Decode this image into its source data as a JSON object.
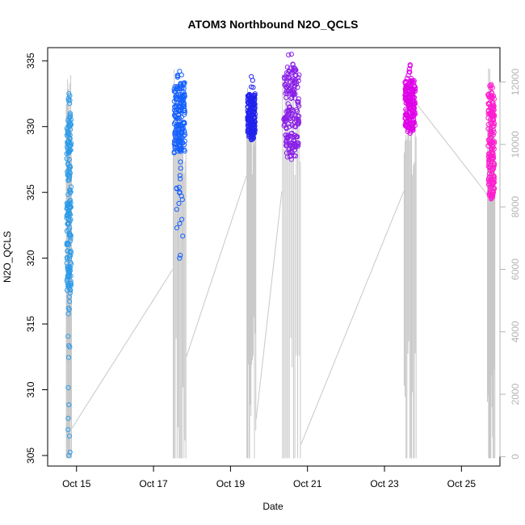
{
  "chart_data": {
    "type": "scatter",
    "title": "ATOM3 Northbound N2O_QCLS",
    "xlabel": "Date",
    "ylabel": "N2O_QCLS",
    "x_axis": {
      "scale": "date",
      "range": [
        "2017-10-14T06:00",
        "2017-10-26T00:00"
      ],
      "ticks": [
        "2017-10-15",
        "2017-10-17",
        "2017-10-19",
        "2017-10-21",
        "2017-10-23",
        "2017-10-25"
      ],
      "tick_labels": [
        "Oct 15",
        "Oct 17",
        "Oct 19",
        "Oct 21",
        "Oct 23",
        "Oct 25"
      ]
    },
    "y_axis": {
      "range": [
        304.2,
        336.0
      ],
      "ticks": [
        305,
        310,
        315,
        320,
        325,
        330,
        335
      ],
      "tick_labels": [
        "305",
        "310",
        "315",
        "320",
        "325",
        "330",
        "335"
      ]
    },
    "y_axis_right": {
      "description": "altitude trace (gray line)",
      "range": [
        -300,
        13100
      ],
      "ticks": [
        0,
        2000,
        4000,
        6000,
        8000,
        10000,
        12000
      ],
      "tick_labels": [
        "0",
        "2000",
        "4000",
        "6000",
        "8000",
        "10000",
        "12000"
      ],
      "color": "#b4b4b4"
    },
    "grid": false,
    "legend": "none",
    "series": [
      {
        "marker": "open-circle",
        "color_gradient": [
          "#1e90ff",
          "#1a1aff",
          "#8a2be2",
          "#ff00ff"
        ],
        "flights": [
          {
            "date": "2017-10-14T19:00",
            "x_start": "2017-10-14T17:30",
            "x_end": "2017-10-14T21:00",
            "y_min": 305.0,
            "y_max": 332.5,
            "y_core": [
              317.5,
              331.0
            ],
            "color": "#2b9bea"
          },
          {
            "date": "2017-10-17T17:00",
            "x_start": "2017-10-17T12:00",
            "x_end": "2017-10-17T20:30",
            "y_min": 320.0,
            "y_max": 334.2,
            "y_core": [
              328.0,
              333.5
            ],
            "color": "#1560ff"
          },
          {
            "date": "2017-10-19T14:00",
            "x_start": "2017-10-19T10:00",
            "x_end": "2017-10-19T16:00",
            "y_min": 329.0,
            "y_max": 333.8,
            "y_core": [
              329.5,
              332.5
            ],
            "color": "#2222ee"
          },
          {
            "date": "2017-10-20T15:00",
            "x_start": "2017-10-20T08:00",
            "x_end": "2017-10-20T20:00",
            "y_min": 327.5,
            "y_max": 335.5,
            "y_core": [
              328.5,
              334.5
            ],
            "color": "#8a1fe8"
          },
          {
            "date": "2017-10-23T17:00",
            "x_start": "2017-10-23T12:00",
            "x_end": "2017-10-23T20:00",
            "y_min": 329.5,
            "y_max": 334.7,
            "y_core": [
              330.0,
              333.5
            ],
            "color": "#e000e8"
          },
          {
            "date": "2017-10-25T18:00",
            "x_start": "2017-10-25T16:00",
            "x_end": "2017-10-25T21:00",
            "y_min": 324.5,
            "y_max": 333.2,
            "y_core": [
              325.0,
              332.5
            ],
            "color": "#ff1dd0"
          }
        ]
      }
    ],
    "altitude_trace": {
      "color": "#c8c8c8",
      "connectors": [
        {
          "from": [
            "2017-10-14T21:00",
            900
          ],
          "to": [
            "2017-10-17T12:00",
            6000
          ]
        },
        {
          "from": [
            "2017-10-17T20:30",
            3200
          ],
          "to": [
            "2017-10-19T10:00",
            9000
          ]
        },
        {
          "from": [
            "2017-10-19T16:00",
            1200
          ],
          "to": [
            "2017-10-20T08:00",
            8500
          ]
        },
        {
          "from": [
            "2017-10-20T20:00",
            400
          ],
          "to": [
            "2017-10-23T12:00",
            8500
          ]
        },
        {
          "from": [
            "2017-10-23T20:00",
            11300
          ],
          "to": [
            "2017-10-25T16:00",
            8400
          ]
        }
      ]
    }
  }
}
